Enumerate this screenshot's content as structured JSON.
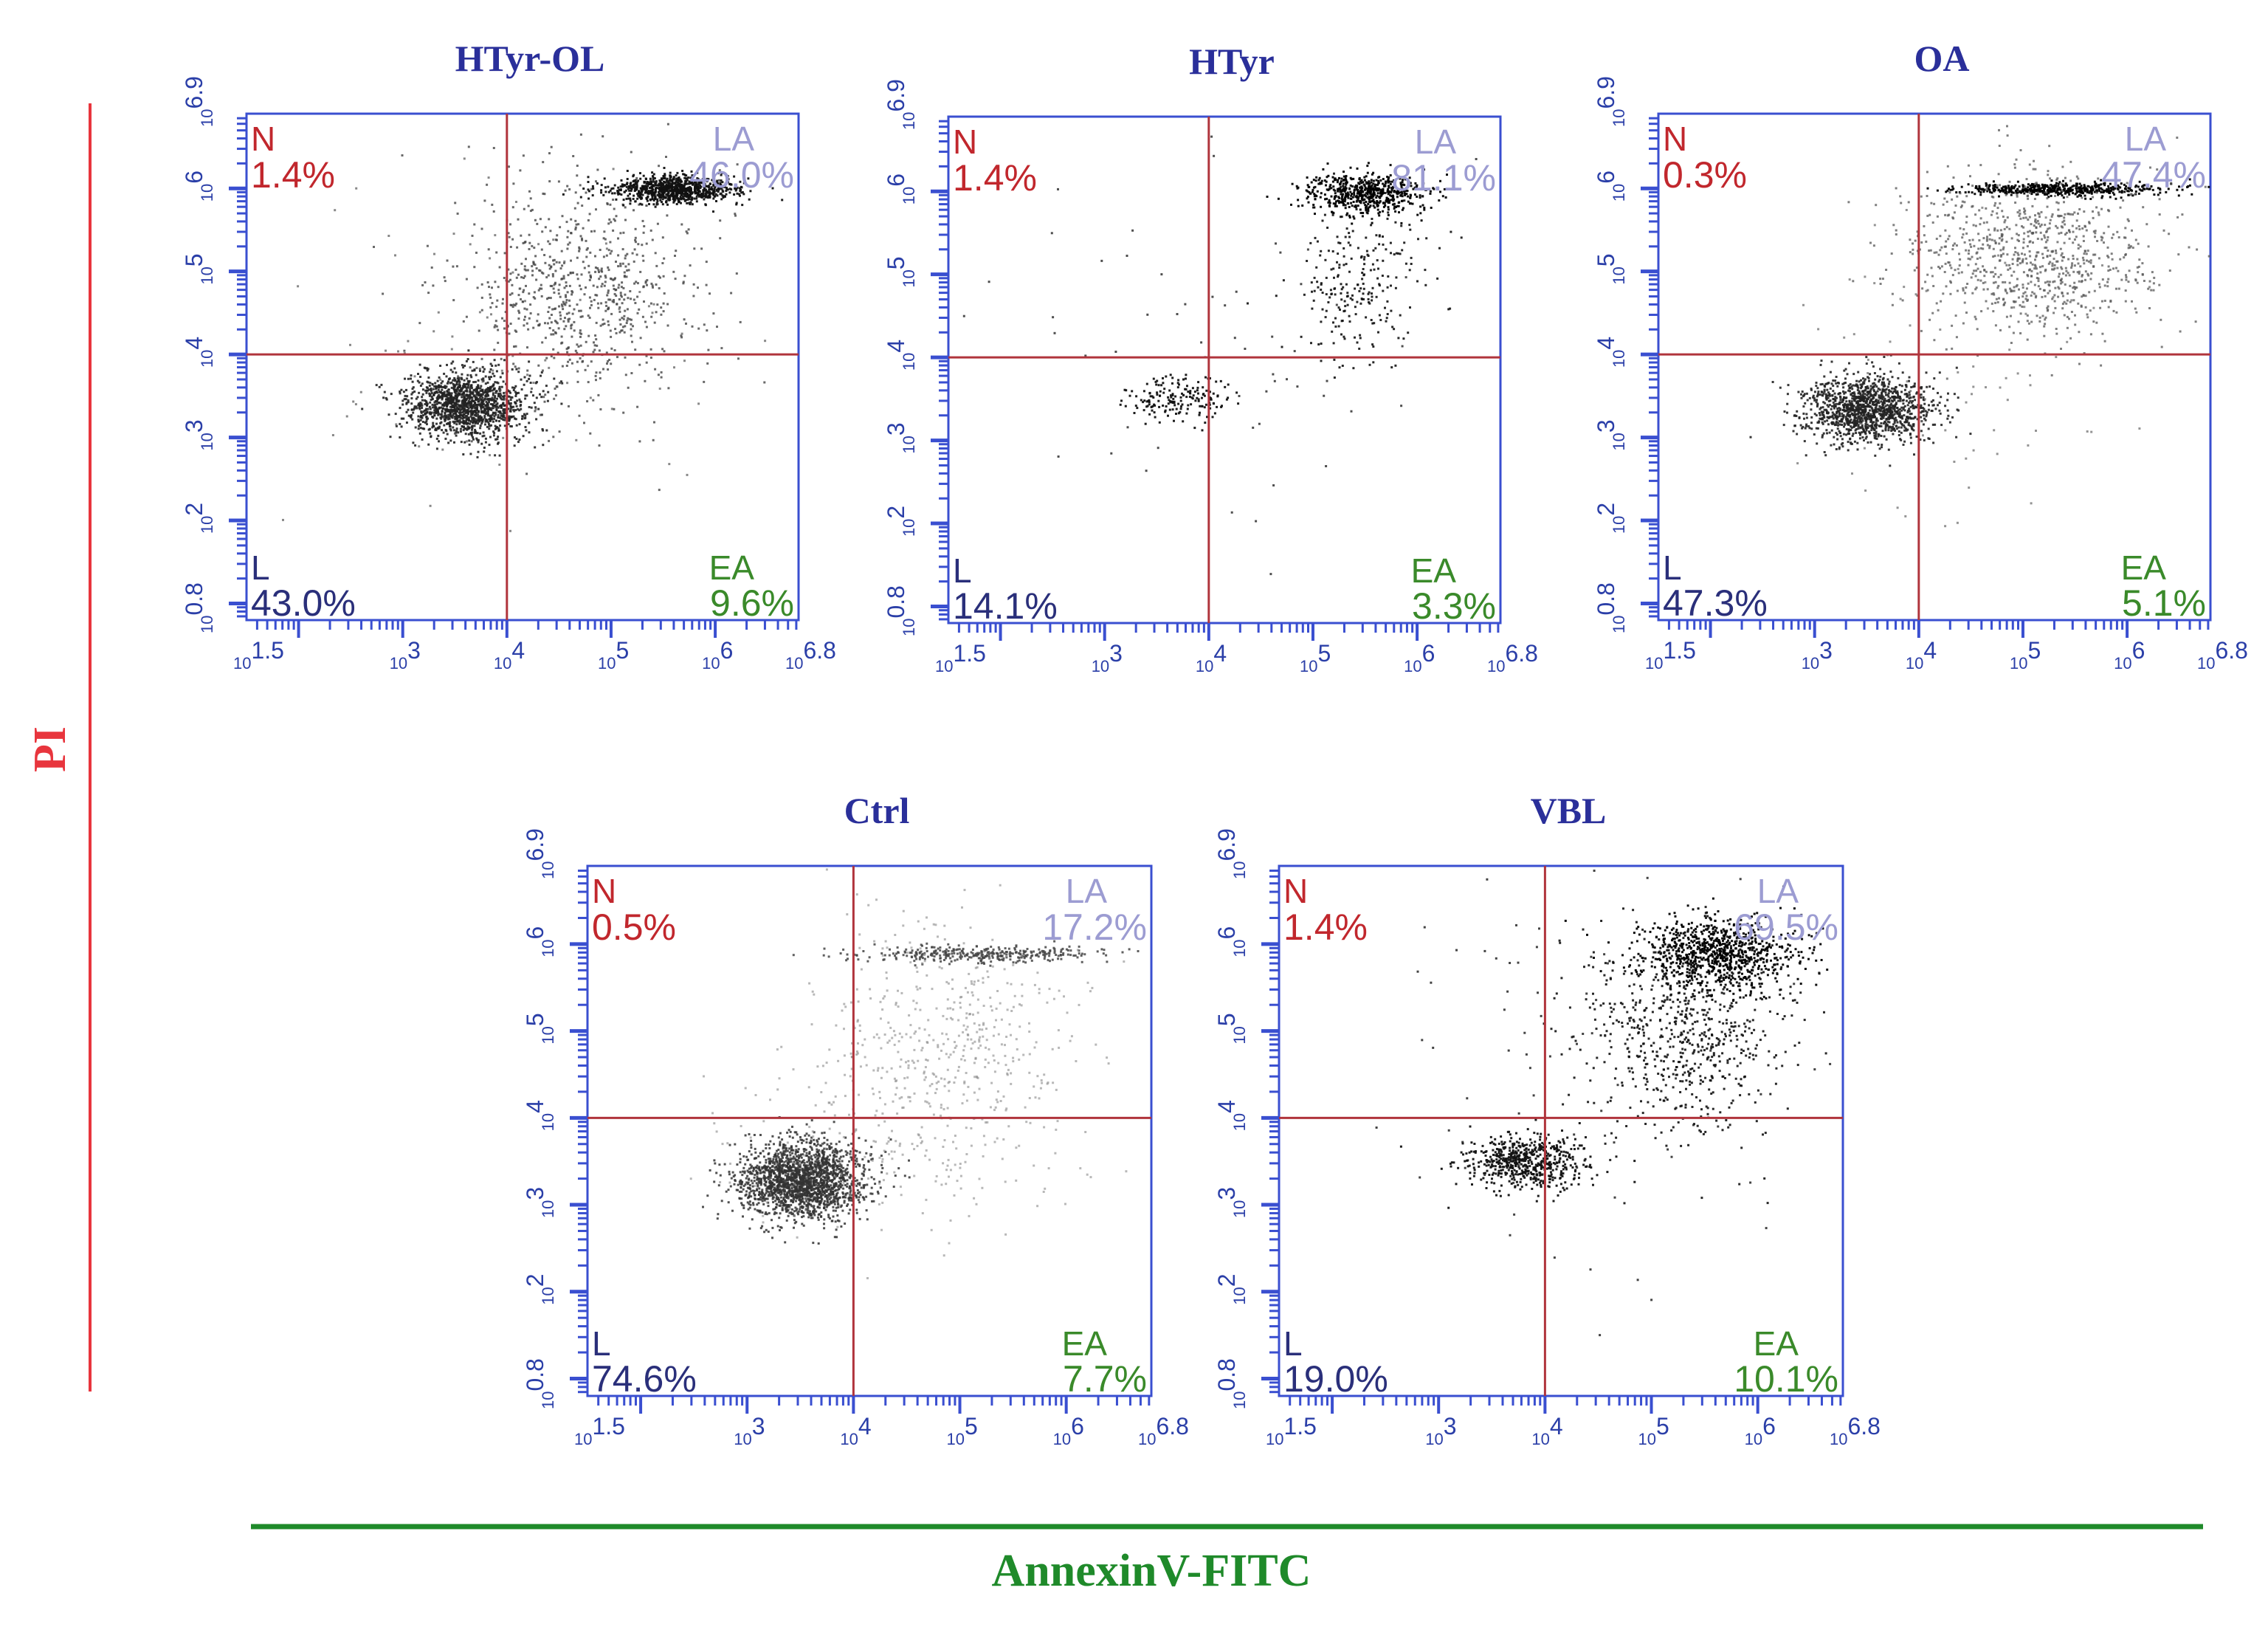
{
  "figure": {
    "y_axis_label": "PI",
    "x_axis_label": "AnnexinV-FITC"
  },
  "colors": {
    "pi_axis": "#e8353d",
    "annexin_axis": "#1f8a2a",
    "plot_frame": "#3a4fd0",
    "gate_line": "#b0343c",
    "title": "#2a2f9a",
    "n_label": "#c1272d",
    "la_label": "#9c9cd2",
    "ea_label": "#3a8a2a",
    "l_label": "#2a2f7a"
  },
  "chart_data": [
    {
      "type": "scatter",
      "title": "HTyr-OL",
      "xlabel": "AnnexinV-FITC",
      "ylabel": "PI",
      "x_scale": "log10",
      "y_scale": "log10",
      "xlim_exp": [
        1.5,
        6.8
      ],
      "ylim_exp": [
        0.8,
        6.9
      ],
      "gate_x_exp": 4,
      "gate_y_exp": 4,
      "x_tick_labels": [
        "10^1.5",
        "10^3",
        "10^4",
        "10^5",
        "10^6",
        "10^6.8"
      ],
      "y_tick_labels": [
        "10^0.8",
        "10^2",
        "10^3",
        "10^4",
        "10^5",
        "10^6",
        "10^6.9"
      ],
      "quadrants": {
        "N": {
          "label": "N",
          "percent": "1.4%"
        },
        "LA": {
          "label": "LA",
          "percent": "46.0%"
        },
        "L": {
          "label": "L",
          "percent": "43.0%"
        },
        "EA": {
          "label": "EA",
          "percent": "9.6%"
        }
      },
      "populations": [
        {
          "region": "live",
          "center_exp": [
            3.6,
            3.4
          ],
          "spread_exp": [
            0.3,
            0.2
          ],
          "count": 1400,
          "tone": "#222222",
          "alpha": 0.9
        },
        {
          "region": "diagonal",
          "center_exp": [
            4.7,
            4.8
          ],
          "spread_exp": [
            0.6,
            0.7
          ],
          "count": 800,
          "tone": "#444444",
          "alpha": 0.8
        },
        {
          "region": "late-band",
          "center_exp": [
            5.6,
            6.0
          ],
          "spread_exp": [
            0.3,
            0.08
          ],
          "count": 900,
          "tone": "#111111",
          "alpha": 0.95
        },
        {
          "region": "stray",
          "center_exp": [
            3.8,
            4.2
          ],
          "spread_exp": [
            1.2,
            1.0
          ],
          "count": 90,
          "tone": "#555555",
          "alpha": 0.7
        }
      ]
    },
    {
      "type": "scatter",
      "title": "HTyr",
      "xlabel": "AnnexinV-FITC",
      "ylabel": "PI",
      "x_scale": "log10",
      "y_scale": "log10",
      "xlim_exp": [
        1.5,
        6.8
      ],
      "ylim_exp": [
        0.8,
        6.9
      ],
      "gate_x_exp": 4,
      "gate_y_exp": 4,
      "x_tick_labels": [
        "10^1.5",
        "10^3",
        "10^4",
        "10^5",
        "10^6",
        "10^6.8"
      ],
      "y_tick_labels": [
        "10^0.8",
        "10^2",
        "10^3",
        "10^4",
        "10^5",
        "10^6",
        "10^6.9"
      ],
      "quadrants": {
        "N": {
          "label": "N",
          "percent": "1.4%"
        },
        "LA": {
          "label": "LA",
          "percent": "81.1%"
        },
        "L": {
          "label": "L",
          "percent": "14.1%"
        },
        "EA": {
          "label": "EA",
          "percent": "3.3%"
        }
      },
      "populations": [
        {
          "region": "live",
          "center_exp": [
            3.7,
            3.5
          ],
          "spread_exp": [
            0.25,
            0.15
          ],
          "count": 180,
          "tone": "#111111",
          "alpha": 0.95
        },
        {
          "region": "late-band",
          "center_exp": [
            5.5,
            6.0
          ],
          "spread_exp": [
            0.3,
            0.12
          ],
          "count": 600,
          "tone": "#000000",
          "alpha": 0.95
        },
        {
          "region": "diagonal",
          "center_exp": [
            5.4,
            5.0
          ],
          "spread_exp": [
            0.3,
            0.5
          ],
          "count": 250,
          "tone": "#111111",
          "alpha": 0.9
        },
        {
          "region": "stray",
          "center_exp": [
            4.0,
            4.5
          ],
          "spread_exp": [
            1.1,
            1.2
          ],
          "count": 60,
          "tone": "#222222",
          "alpha": 0.8
        }
      ]
    },
    {
      "type": "scatter",
      "title": "OA",
      "xlabel": "AnnexinV-FITC",
      "ylabel": "PI",
      "x_scale": "log10",
      "y_scale": "log10",
      "xlim_exp": [
        1.5,
        6.8
      ],
      "ylim_exp": [
        0.8,
        6.9
      ],
      "gate_x_exp": 4,
      "gate_y_exp": 4,
      "x_tick_labels": [
        "10^1.5",
        "10^3",
        "10^4",
        "10^5",
        "10^6",
        "10^6.8"
      ],
      "y_tick_labels": [
        "10^0.8",
        "10^2",
        "10^3",
        "10^4",
        "10^5",
        "10^6",
        "10^6.9"
      ],
      "quadrants": {
        "N": {
          "label": "N",
          "percent": "0.3%"
        },
        "LA": {
          "label": "LA",
          "percent": "47.4%"
        },
        "L": {
          "label": "L",
          "percent": "47.3%"
        },
        "EA": {
          "label": "EA",
          "percent": "5.1%"
        }
      },
      "populations": [
        {
          "region": "live",
          "center_exp": [
            3.5,
            3.35
          ],
          "spread_exp": [
            0.3,
            0.2
          ],
          "count": 1300,
          "tone": "#222222",
          "alpha": 0.9
        },
        {
          "region": "late-band",
          "center_exp": [
            5.3,
            6.0
          ],
          "spread_exp": [
            0.5,
            0.04
          ],
          "count": 500,
          "tone": "#000000",
          "alpha": 0.95
        },
        {
          "region": "diagonal",
          "center_exp": [
            5.1,
            5.2
          ],
          "spread_exp": [
            0.6,
            0.5
          ],
          "count": 900,
          "tone": "#555555",
          "alpha": 0.75
        },
        {
          "region": "stray",
          "center_exp": [
            4.2,
            3.9
          ],
          "spread_exp": [
            0.9,
            0.9
          ],
          "count": 80,
          "tone": "#666666",
          "alpha": 0.7
        }
      ]
    },
    {
      "type": "scatter",
      "title": "Ctrl",
      "xlabel": "AnnexinV-FITC",
      "ylabel": "PI",
      "x_scale": "log10",
      "y_scale": "log10",
      "xlim_exp": [
        1.5,
        6.8
      ],
      "ylim_exp": [
        0.8,
        6.9
      ],
      "gate_x_exp": 4,
      "gate_y_exp": 4,
      "x_tick_labels": [
        "10^1.5",
        "10^3",
        "10^4",
        "10^5",
        "10^6",
        "10^6.8"
      ],
      "y_tick_labels": [
        "10^0.8",
        "10^2",
        "10^3",
        "10^4",
        "10^5",
        "10^6",
        "10^6.9"
      ],
      "quadrants": {
        "N": {
          "label": "N",
          "percent": "0.5%"
        },
        "LA": {
          "label": "LA",
          "percent": "17.2%"
        },
        "L": {
          "label": "L",
          "percent": "74.6%"
        },
        "EA": {
          "label": "EA",
          "percent": "7.7%"
        }
      },
      "populations": [
        {
          "region": "live",
          "center_exp": [
            3.5,
            3.3
          ],
          "spread_exp": [
            0.3,
            0.22
          ],
          "count": 2000,
          "tone": "#333333",
          "alpha": 0.85
        },
        {
          "region": "late-band",
          "center_exp": [
            5.2,
            5.9
          ],
          "spread_exp": [
            0.6,
            0.05
          ],
          "count": 350,
          "tone": "#444444",
          "alpha": 0.85
        },
        {
          "region": "diagonal",
          "center_exp": [
            4.8,
            4.9
          ],
          "spread_exp": [
            0.6,
            0.7
          ],
          "count": 500,
          "tone": "#888888",
          "alpha": 0.6
        },
        {
          "region": "stray",
          "center_exp": [
            4.4,
            3.6
          ],
          "spread_exp": [
            0.8,
            0.5
          ],
          "count": 150,
          "tone": "#888888",
          "alpha": 0.6
        }
      ]
    },
    {
      "type": "scatter",
      "title": "VBL",
      "xlabel": "AnnexinV-FITC",
      "ylabel": "PI",
      "x_scale": "log10",
      "y_scale": "log10",
      "xlim_exp": [
        1.5,
        6.8
      ],
      "ylim_exp": [
        0.8,
        6.9
      ],
      "gate_x_exp": 4,
      "gate_y_exp": 4,
      "x_tick_labels": [
        "10^1.5",
        "10^3",
        "10^4",
        "10^5",
        "10^6",
        "10^6.8"
      ],
      "y_tick_labels": [
        "10^0.8",
        "10^2",
        "10^3",
        "10^4",
        "10^5",
        "10^6",
        "10^6.9"
      ],
      "quadrants": {
        "N": {
          "label": "N",
          "percent": "1.4%"
        },
        "LA": {
          "label": "LA",
          "percent": "69.5%"
        },
        "L": {
          "label": "L",
          "percent": "19.0%"
        },
        "EA": {
          "label": "EA",
          "percent": "10.1%"
        }
      },
      "populations": [
        {
          "region": "live",
          "center_exp": [
            3.8,
            3.5
          ],
          "spread_exp": [
            0.28,
            0.15
          ],
          "count": 600,
          "tone": "#111111",
          "alpha": 0.95
        },
        {
          "region": "late-band",
          "center_exp": [
            5.6,
            5.9
          ],
          "spread_exp": [
            0.35,
            0.2
          ],
          "count": 900,
          "tone": "#000000",
          "alpha": 0.95
        },
        {
          "region": "diagonal",
          "center_exp": [
            5.3,
            5.0
          ],
          "spread_exp": [
            0.5,
            0.6
          ],
          "count": 700,
          "tone": "#111111",
          "alpha": 0.9
        },
        {
          "region": "stray",
          "center_exp": [
            4.3,
            5.0
          ],
          "spread_exp": [
            1.0,
            1.3
          ],
          "count": 90,
          "tone": "#222222",
          "alpha": 0.85
        }
      ]
    }
  ]
}
